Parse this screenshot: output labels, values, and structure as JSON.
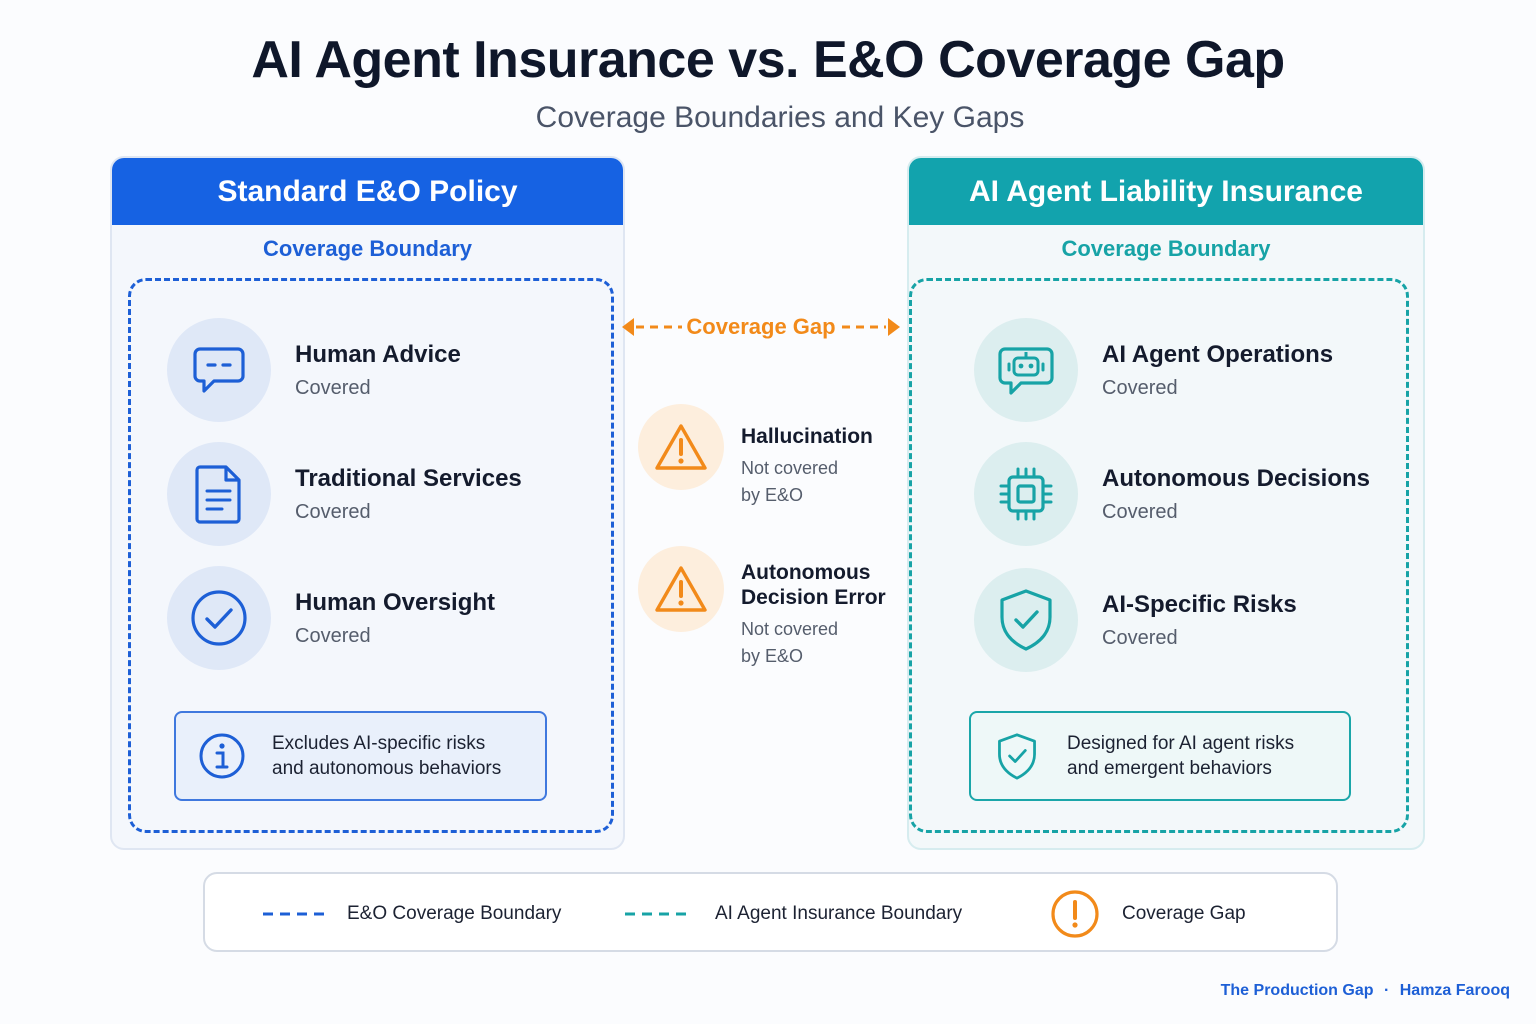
{
  "title": "AI Agent Insurance vs. E&O Coverage Gap",
  "subtitle": "Coverage Boundaries and Key Gaps",
  "colors": {
    "eo_blue": "#1662e3",
    "ai_teal": "#12a3ad",
    "gap_orange": "#f28a1a"
  },
  "left_panel": {
    "header": "Standard E&O Policy",
    "boundary_label": "Coverage Boundary",
    "items": [
      {
        "icon": "chat-bubble-icon",
        "title": "Human Advice",
        "status": "Covered"
      },
      {
        "icon": "document-icon",
        "title": "Traditional Services",
        "status": "Covered"
      },
      {
        "icon": "check-circle-icon",
        "title": "Human Oversight",
        "status": "Covered"
      }
    ],
    "note": {
      "icon": "info-icon",
      "line1": "Excludes AI-specific risks",
      "line2": "and autonomous behaviors"
    }
  },
  "right_panel": {
    "header": "AI Agent Liability Insurance",
    "boundary_label": "Coverage Boundary",
    "items": [
      {
        "icon": "robot-chat-icon",
        "title": "AI Agent Operations",
        "status": "Covered"
      },
      {
        "icon": "chip-icon",
        "title": "Autonomous Decisions",
        "status": "Covered"
      },
      {
        "icon": "shield-check-icon",
        "title": "AI-Specific Risks",
        "status": "Covered"
      }
    ],
    "note": {
      "icon": "shield-check-icon",
      "line1": "Designed for AI agent risks",
      "line2": "and emergent behaviors"
    }
  },
  "gap": {
    "label": "Coverage Gap",
    "items": [
      {
        "icon": "warning-icon",
        "title_line1": "Hallucination",
        "title_line2": "",
        "status_line1": "Not covered",
        "status_line2": "by E&O"
      },
      {
        "icon": "warning-icon",
        "title_line1": "Autonomous",
        "title_line2": "Decision Error",
        "status_line1": "Not covered",
        "status_line2": "by E&O"
      }
    ]
  },
  "legend": {
    "eo": "E&O Coverage Boundary",
    "ai": "AI Agent Insurance Boundary",
    "gap": "Coverage Gap"
  },
  "credit": {
    "source": "The Production Gap",
    "separator": "·",
    "author": "Hamza Farooq"
  }
}
